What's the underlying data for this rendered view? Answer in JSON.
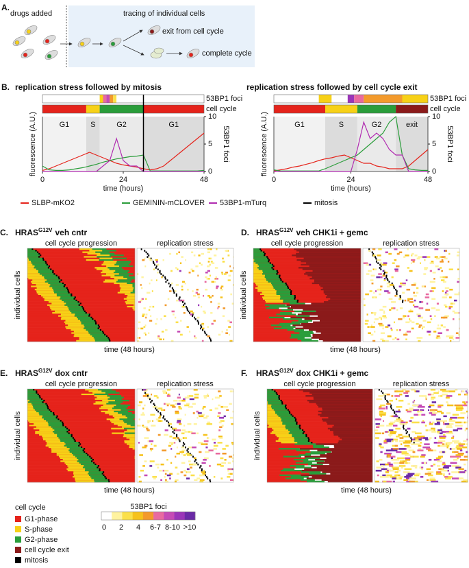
{
  "panel_a": {
    "label": "A.",
    "drugs_added": "drugs added",
    "tracing": "tracing of individual cells",
    "exit": "exit from cell cycle",
    "complete": "complete cycle"
  },
  "panel_b": {
    "label": "B."
  },
  "chart_data": [
    {
      "type": "line",
      "title": "replication stress followed by mitosis",
      "xlabel": "time (hours)",
      "ylabel": "fluorescence (A.U.)",
      "y2label": "53BP1 foci",
      "x": [
        0,
        2,
        4,
        6,
        8,
        10,
        12,
        14,
        16,
        18,
        20,
        22,
        24,
        26,
        28,
        30,
        32,
        34,
        36,
        38,
        40,
        42,
        44,
        46,
        48
      ],
      "xlim": [
        0,
        48
      ],
      "xticks": [
        0,
        24,
        48
      ],
      "ylim": [
        0,
        10
      ],
      "y2lim": [
        0,
        10
      ],
      "y2ticks": [
        0,
        5,
        10
      ],
      "series": [
        {
          "name": "SLBP-mKO2",
          "color": "#e5231b",
          "values": [
            0.2,
            0.5,
            1,
            1.5,
            2,
            2.5,
            3,
            3.5,
            3,
            2.5,
            2,
            1.5,
            1.2,
            1,
            0.8,
            0.5,
            0.3,
            0.5,
            1,
            2,
            3,
            4,
            5,
            6,
            7
          ]
        },
        {
          "name": "GEMININ-mCLOVER",
          "color": "#2a9d3a",
          "values": [
            1,
            0.3,
            0.2,
            0.2,
            0.3,
            0.5,
            0.7,
            1,
            1.3,
            1.7,
            2,
            2.3,
            2.5,
            2.7,
            2.8,
            3,
            0.1,
            0.1,
            0.1,
            0.1,
            0.1,
            0.1,
            0.1,
            0.1,
            0.2
          ]
        },
        {
          "name": "53BP1-mTurq",
          "color": "#b02bb0",
          "axis": "y2",
          "values": [
            0,
            0,
            0,
            0,
            0,
            0,
            0,
            0,
            0,
            1,
            2,
            6,
            2,
            1,
            1,
            0,
            0,
            0,
            0,
            0,
            0,
            0,
            0,
            0,
            0
          ]
        }
      ],
      "mitosis": {
        "name": "mitosis",
        "x": 30,
        "color": "#000000"
      },
      "phases": [
        {
          "label": "G1",
          "start": 0,
          "end": 13,
          "shade": "#f2f2f2"
        },
        {
          "label": "S",
          "start": 13,
          "end": 17,
          "shade": "#dcdcdc"
        },
        {
          "label": "G2",
          "start": 17,
          "end": 30,
          "shade": "#eaeaea"
        },
        {
          "label": "G1",
          "start": 30,
          "end": 48,
          "shade": "#dcdcdc"
        }
      ],
      "strips": [
        {
          "label": "53BP1 foci",
          "segments": [
            {
              "start": 0,
              "end": 17,
              "color": "#ffffff"
            },
            {
              "start": 17,
              "end": 18,
              "color": "#f7d117"
            },
            {
              "start": 18,
              "end": 19,
              "color": "#e86aa0"
            },
            {
              "start": 19,
              "end": 20,
              "color": "#c54bb5"
            },
            {
              "start": 20,
              "end": 21,
              "color": "#f39a2c"
            },
            {
              "start": 21,
              "end": 22,
              "color": "#fbe04a"
            },
            {
              "start": 22,
              "end": 48,
              "color": "#ffffff"
            }
          ]
        },
        {
          "label": "cell cycle",
          "segments": [
            {
              "start": 0,
              "end": 13,
              "color": "#e5231b"
            },
            {
              "start": 13,
              "end": 17,
              "color": "#f7d117"
            },
            {
              "start": 17,
              "end": 30,
              "color": "#2a9d3a"
            },
            {
              "start": 30,
              "end": 48,
              "color": "#e5231b"
            }
          ]
        }
      ]
    },
    {
      "type": "line",
      "title": "replication stress followed by cell cycle exit",
      "xlabel": "time (hours)",
      "ylabel": "fluorescence (A.U.)",
      "y2label": "53BP1 foci",
      "x": [
        0,
        2,
        4,
        6,
        8,
        10,
        12,
        14,
        16,
        18,
        20,
        22,
        24,
        26,
        28,
        30,
        32,
        34,
        36,
        38,
        40,
        42,
        44,
        46,
        48
      ],
      "xlim": [
        0,
        48
      ],
      "xticks": [
        0,
        24,
        48
      ],
      "ylim": [
        0,
        10
      ],
      "y2lim": [
        0,
        10
      ],
      "y2ticks": [
        0,
        5,
        10
      ],
      "series": [
        {
          "name": "SLBP-mKO2",
          "color": "#e5231b",
          "values": [
            0.1,
            0.3,
            0.5,
            0.8,
            1,
            1.3,
            1.6,
            2,
            2.3,
            2.5,
            2.8,
            3,
            2.5,
            2,
            1.5,
            1.5,
            1,
            0.8,
            0.5,
            0.5,
            0.5,
            1,
            2,
            3,
            4
          ]
        },
        {
          "name": "GEMININ-mCLOVER",
          "color": "#2a9d3a",
          "values": [
            0.3,
            0.1,
            0.1,
            0.1,
            0.1,
            0.1,
            0.1,
            0.1,
            0.5,
            1,
            1.5,
            2,
            2.5,
            3,
            4,
            5,
            6,
            7,
            9,
            10,
            3,
            0.5,
            0.3,
            0.2,
            0.2
          ]
        },
        {
          "name": "53BP1-mTurq",
          "color": "#b02bb0",
          "axis": "y2",
          "values": [
            0,
            0,
            0,
            0,
            0,
            0,
            0,
            0,
            0,
            0,
            0,
            0,
            0,
            4,
            9,
            6,
            7,
            6,
            4,
            3,
            3,
            0,
            0,
            0,
            0
          ]
        }
      ],
      "phases": [
        {
          "label": "G1",
          "start": 0,
          "end": 16,
          "shade": "#f2f2f2"
        },
        {
          "label": "S",
          "start": 16,
          "end": 26,
          "shade": "#dcdcdc"
        },
        {
          "label": "G2",
          "start": 26,
          "end": 38,
          "shade": "#eaeaea"
        },
        {
          "label": "exit",
          "start": 38,
          "end": 48,
          "shade": "#dcdcdc"
        }
      ],
      "strips": [
        {
          "label": "53BP1 foci",
          "segments": [
            {
              "start": 0,
              "end": 14,
              "color": "#ffffff"
            },
            {
              "start": 14,
              "end": 18,
              "color": "#f7d117"
            },
            {
              "start": 18,
              "end": 23,
              "color": "#ffffff"
            },
            {
              "start": 23,
              "end": 25,
              "color": "#9a35b8"
            },
            {
              "start": 25,
              "end": 28,
              "color": "#e86aa0"
            },
            {
              "start": 28,
              "end": 40,
              "color": "#f39a2c"
            },
            {
              "start": 40,
              "end": 48,
              "color": "#f7d117"
            }
          ]
        },
        {
          "label": "cell cycle",
          "segments": [
            {
              "start": 0,
              "end": 16,
              "color": "#e5231b"
            },
            {
              "start": 16,
              "end": 26,
              "color": "#f7d117"
            },
            {
              "start": 26,
              "end": 38,
              "color": "#2a9d3a"
            },
            {
              "start": 38,
              "end": 48,
              "color": "#8b1a1a"
            }
          ]
        }
      ]
    }
  ],
  "panels": [
    {
      "label": "C.",
      "title_prefix": "HRAS",
      "title_sup": "G12V",
      "title_suffix": "veh cntr",
      "left_title": "cell cycle progression",
      "right_title": "replication stress",
      "ylabel": "individual cells",
      "xlabel": "time (48 hours)"
    },
    {
      "label": "D.",
      "title_prefix": "HRAS",
      "title_sup": "G12V",
      "title_suffix": "veh CHK1i + gemc",
      "left_title": "cell cycle progression",
      "right_title": "replication stress",
      "ylabel": "individual cells",
      "xlabel": "time (48 hours)"
    },
    {
      "label": "E.",
      "title_prefix": "HRAS",
      "title_sup": "G12V",
      "title_suffix": "dox cntr",
      "left_title": "cell cycle progression",
      "right_title": "replication stress",
      "ylabel": "individual cells",
      "xlabel": "time (48 hours)"
    },
    {
      "label": "F.",
      "title_prefix": "HRAS",
      "title_sup": "G12V",
      "title_suffix": "dox CHK1i + gemc",
      "left_title": "cell cycle progression",
      "right_title": "replication stress",
      "ylabel": "individual cells",
      "xlabel": "time (48 hours)"
    }
  ],
  "legend": {
    "cell_cycle_title": "cell cycle",
    "items": [
      {
        "name": "G1-phase",
        "color": "#e5231b"
      },
      {
        "name": "S-phase",
        "color": "#f7d117"
      },
      {
        "name": "G2-phase",
        "color": "#2a9d3a"
      },
      {
        "name": "cell cycle exit",
        "color": "#8b1a1a"
      },
      {
        "name": "mitosis",
        "color": "#000000"
      }
    ],
    "foci_title": "53BP1 foci",
    "colors": [
      "#ffffff",
      "#fff3a0",
      "#fbe04a",
      "#f6c21d",
      "#f39a2c",
      "#e86aa0",
      "#c54bb5",
      "#9a35b8",
      "#6a2aa6"
    ],
    "tick_labels": [
      "0",
      "2",
      "4",
      "6-7",
      "8-10",
      ">10"
    ]
  }
}
